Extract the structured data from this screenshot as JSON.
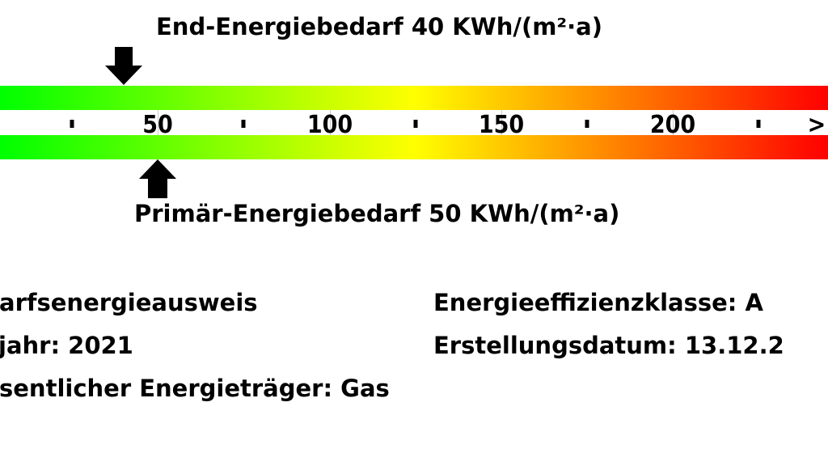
{
  "end_energy": {
    "label": "End-Energiebedarf 40 KWh/(m²·a)",
    "value": 40
  },
  "primary_energy": {
    "label": "Primär-Energiebedarf 50 KWh/(m²·a)",
    "value": 50
  },
  "scale": {
    "labels": [
      "50",
      "100",
      "150",
      "200",
      ">"
    ],
    "label_values": [
      50,
      100,
      150,
      200,
      250
    ],
    "minor_ticks": [
      25,
      75,
      125,
      175,
      225
    ],
    "gradient": [
      "#00ff00",
      "#ffff00",
      "#ff0000"
    ]
  },
  "info": {
    "type": "arfsenergieausweis",
    "year": "jahr: 2021",
    "carrier": "sentlicher Energieträger: Gas",
    "efficiency_class": "Energieeffizienzklasse: A",
    "created": "Erstellungsdatum: 13.12.2"
  }
}
